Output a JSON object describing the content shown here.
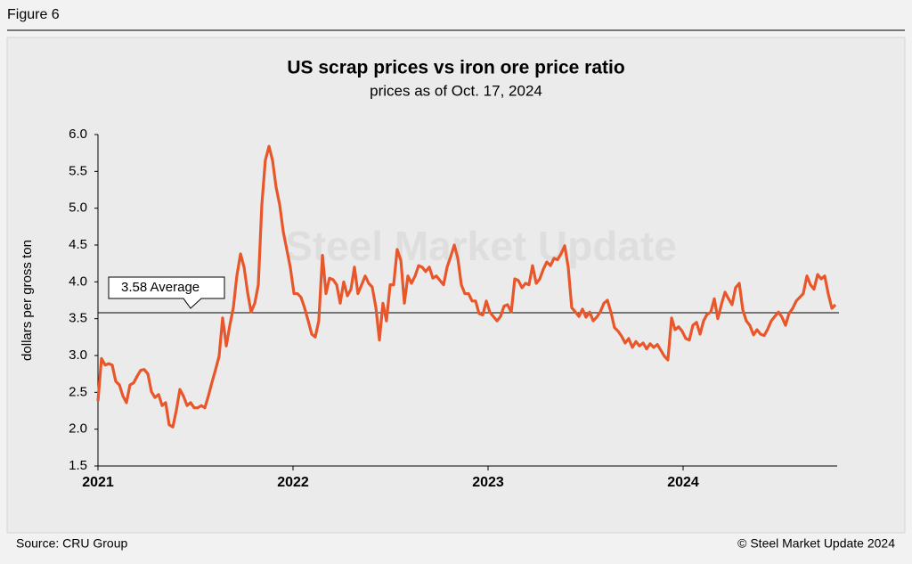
{
  "header": {
    "figure": "Figure 6"
  },
  "chart_data": {
    "type": "line",
    "title": "US scrap prices vs iron ore price ratio",
    "subtitle": "prices as of Oct. 17, 2024",
    "y_label": "dollars per gross ton",
    "watermark": "Steel Market Update",
    "average": {
      "value": 3.58,
      "label": "3.58 Average"
    },
    "xlim": [
      2021,
      2024.79
    ],
    "xticks": [
      2021,
      2022,
      2023,
      2024
    ],
    "ylim": [
      1.5,
      6
    ],
    "yticks": [
      {
        "value": 1.5,
        "label": "1.5"
      },
      {
        "value": 2,
        "label": "2.0"
      },
      {
        "value": 2.5,
        "label": "2.5"
      },
      {
        "value": 3,
        "label": "3.0"
      },
      {
        "value": 3.5,
        "label": "3.5"
      },
      {
        "value": 4,
        "label": "4.0"
      },
      {
        "value": 4.5,
        "label": "4.5"
      },
      {
        "value": 5,
        "label": "5.0"
      },
      {
        "value": 5.5,
        "label": "5.5"
      },
      {
        "value": 6,
        "label": "6.0"
      }
    ],
    "grid": false,
    "x": [
      2021.0,
      2021.018,
      2021.037,
      2021.055,
      2021.073,
      2021.091,
      2021.11,
      2021.128,
      2021.146,
      2021.164,
      2021.183,
      2021.201,
      2021.219,
      2021.237,
      2021.256,
      2021.274,
      2021.292,
      2021.311,
      2021.329,
      2021.347,
      2021.365,
      2021.384,
      2021.402,
      2021.42,
      2021.438,
      2021.457,
      2021.475,
      2021.493,
      2021.511,
      2021.53,
      2021.548,
      2021.566,
      2021.584,
      2021.603,
      2021.621,
      2021.639,
      2021.658,
      2021.676,
      2021.694,
      2021.712,
      2021.731,
      2021.749,
      2021.767,
      2021.785,
      2021.804,
      2021.822,
      2021.84,
      2021.858,
      2021.877,
      2021.895,
      2021.913,
      2021.932,
      2021.95,
      2021.968,
      2021.986,
      2022.005,
      2022.023,
      2022.041,
      2022.059,
      2022.078,
      2022.096,
      2022.114,
      2022.132,
      2022.151,
      2022.169,
      2022.187,
      2022.205,
      2022.224,
      2022.242,
      2022.26,
      2022.279,
      2022.297,
      2022.315,
      2022.333,
      2022.352,
      2022.37,
      2022.388,
      2022.406,
      2022.425,
      2022.443,
      2022.461,
      2022.479,
      2022.498,
      2022.516,
      2022.534,
      2022.553,
      2022.571,
      2022.589,
      2022.607,
      2022.626,
      2022.644,
      2022.662,
      2022.68,
      2022.699,
      2022.717,
      2022.735,
      2022.753,
      2022.772,
      2022.79,
      2022.808,
      2022.827,
      2022.845,
      2022.863,
      2022.881,
      2022.9,
      2022.918,
      2022.936,
      2022.954,
      2022.973,
      2022.991,
      2023.009,
      2023.027,
      2023.046,
      2023.064,
      2023.082,
      2023.1,
      2023.119,
      2023.137,
      2023.155,
      2023.174,
      2023.192,
      2023.21,
      2023.228,
      2023.247,
      2023.265,
      2023.283,
      2023.301,
      2023.32,
      2023.338,
      2023.356,
      2023.374,
      2023.393,
      2023.411,
      2023.429,
      2023.448,
      2023.466,
      2023.484,
      2023.502,
      2023.521,
      2023.539,
      2023.557,
      2023.575,
      2023.594,
      2023.612,
      2023.63,
      2023.648,
      2023.667,
      2023.685,
      2023.703,
      2023.721,
      2023.74,
      2023.758,
      2023.776,
      2023.795,
      2023.813,
      2023.831,
      2023.849,
      2023.868,
      2023.886,
      2023.904,
      2023.922,
      2023.941,
      2023.959,
      2023.977,
      2023.995,
      2024.014,
      2024.032,
      2024.05,
      2024.069,
      2024.087,
      2024.105,
      2024.123,
      2024.142,
      2024.16,
      2024.178,
      2024.196,
      2024.215,
      2024.233,
      2024.251,
      2024.269,
      2024.288,
      2024.306,
      2024.324,
      2024.342,
      2024.361,
      2024.379,
      2024.397,
      2024.416,
      2024.434,
      2024.452,
      2024.47,
      2024.489,
      2024.507,
      2024.525,
      2024.543,
      2024.562,
      2024.58,
      2024.598,
      2024.616,
      2024.635,
      2024.653,
      2024.671,
      2024.69,
      2024.708,
      2024.726,
      2024.744,
      2024.763,
      2024.781
    ],
    "series": [
      {
        "name": "US scrap vs iron ore price ratio",
        "color": "#e8562a",
        "values": [
          2.38,
          2.96,
          2.87,
          2.89,
          2.87,
          2.65,
          2.6,
          2.45,
          2.36,
          2.6,
          2.63,
          2.72,
          2.8,
          2.81,
          2.75,
          2.51,
          2.43,
          2.47,
          2.32,
          2.36,
          2.06,
          2.03,
          2.26,
          2.54,
          2.45,
          2.32,
          2.36,
          2.29,
          2.29,
          2.32,
          2.29,
          2.45,
          2.63,
          2.81,
          2.99,
          3.51,
          3.13,
          3.41,
          3.65,
          4.08,
          4.38,
          4.2,
          3.86,
          3.59,
          3.71,
          3.96,
          5.04,
          5.65,
          5.84,
          5.65,
          5.29,
          5.04,
          4.68,
          4.44,
          4.2,
          3.84,
          3.84,
          3.79,
          3.65,
          3.47,
          3.29,
          3.25,
          3.47,
          4.36,
          3.84,
          4.05,
          4.03,
          3.96,
          3.71,
          4.0,
          3.81,
          3.9,
          4.2,
          3.84,
          3.96,
          4.08,
          3.98,
          3.93,
          3.65,
          3.21,
          3.71,
          3.47,
          3.96,
          3.96,
          4.44,
          4.29,
          3.71,
          4.08,
          3.98,
          4.08,
          4.22,
          4.2,
          4.14,
          4.2,
          4.05,
          4.08,
          4.02,
          3.96,
          4.2,
          4.34,
          4.5,
          4.32,
          3.96,
          3.84,
          3.84,
          3.74,
          3.74,
          3.57,
          3.55,
          3.74,
          3.59,
          3.53,
          3.47,
          3.53,
          3.67,
          3.69,
          3.59,
          4.04,
          4.02,
          3.92,
          3.98,
          3.96,
          4.22,
          3.98,
          4.04,
          4.17,
          4.27,
          4.22,
          4.32,
          4.3,
          4.38,
          4.49,
          4.2,
          3.65,
          3.59,
          3.53,
          3.63,
          3.52,
          3.59,
          3.47,
          3.52,
          3.59,
          3.71,
          3.75,
          3.59,
          3.38,
          3.33,
          3.26,
          3.17,
          3.23,
          3.11,
          3.19,
          3.13,
          3.17,
          3.09,
          3.16,
          3.11,
          3.15,
          3.07,
          2.99,
          2.94,
          3.51,
          3.35,
          3.39,
          3.33,
          3.23,
          3.21,
          3.41,
          3.45,
          3.29,
          3.47,
          3.56,
          3.59,
          3.77,
          3.5,
          3.69,
          3.86,
          3.77,
          3.69,
          3.92,
          3.98,
          3.62,
          3.47,
          3.41,
          3.28,
          3.35,
          3.29,
          3.27,
          3.36,
          3.47,
          3.53,
          3.59,
          3.52,
          3.41,
          3.57,
          3.64,
          3.74,
          3.79,
          3.84,
          4.08,
          3.96,
          3.9,
          4.1,
          4.04,
          4.08,
          3.84,
          3.64,
          3.69
        ]
      }
    ]
  },
  "footer": {
    "source": "Source: CRU Group",
    "copyright": "© Steel Market Update 2024"
  }
}
